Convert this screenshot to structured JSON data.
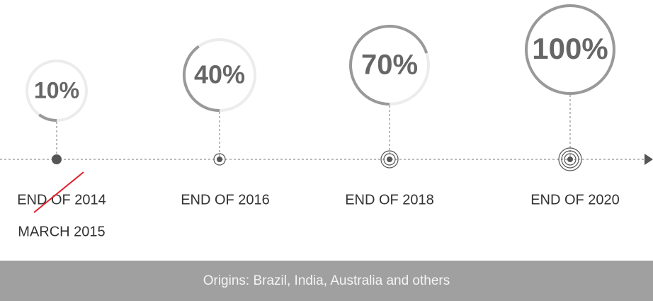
{
  "timeline": {
    "milestones": [
      {
        "label": "10%",
        "value": 10,
        "date": "END OF 2014",
        "revised_date": "MARCH 2015"
      },
      {
        "label": "40%",
        "value": 40,
        "date": "END OF 2016"
      },
      {
        "label": "70%",
        "value": 70,
        "date": "END OF 2018"
      },
      {
        "label": "100%",
        "value": 100,
        "date": "END OF 2020"
      }
    ],
    "footer": "Origins: Brazil, India, Australia and others"
  }
}
